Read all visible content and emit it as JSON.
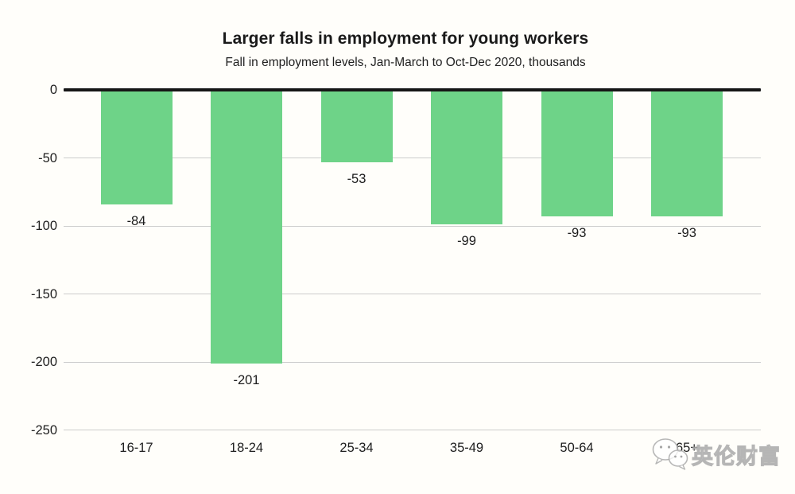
{
  "chart_data": {
    "type": "bar",
    "title": "Larger falls in employment for young workers",
    "subtitle": "Fall in employment levels, Jan-March to Oct-Dec 2020, thousands",
    "categories": [
      "16-17",
      "18-24",
      "25-34",
      "35-49",
      "50-64",
      "65+"
    ],
    "values": [
      -84,
      -201,
      -53,
      -99,
      -93,
      -93
    ],
    "bar_labels": [
      "-84",
      "-201",
      "-53",
      "-99",
      "-93",
      "-93"
    ],
    "yticks": [
      0,
      -50,
      -100,
      -150,
      -200,
      -250
    ],
    "ytick_labels": [
      "0",
      "-50",
      "-100",
      "-150",
      "-200",
      "-250"
    ],
    "ylim": [
      -250,
      0
    ],
    "xlabel": "",
    "ylabel": "",
    "grid": true,
    "legend": "none",
    "bar_color": "#6ed388",
    "zero_line_color": "#161616",
    "grid_color": "#cccccc",
    "text_color": "#1d1d1d",
    "background_color": "#fffefa"
  },
  "watermark": {
    "text": "英伦财富",
    "icon": "wechat-icon"
  }
}
